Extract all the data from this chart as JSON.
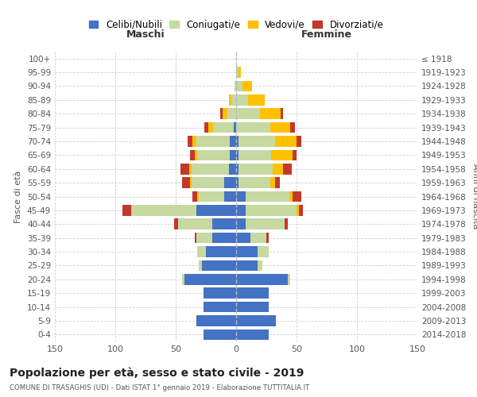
{
  "age_groups": [
    "0-4",
    "5-9",
    "10-14",
    "15-19",
    "20-24",
    "25-29",
    "30-34",
    "35-39",
    "40-44",
    "45-49",
    "50-54",
    "55-59",
    "60-64",
    "65-69",
    "70-74",
    "75-79",
    "80-84",
    "85-89",
    "90-94",
    "95-99",
    "100+"
  ],
  "birth_years": [
    "2014-2018",
    "2009-2013",
    "2004-2008",
    "1999-2003",
    "1994-1998",
    "1989-1993",
    "1984-1988",
    "1979-1983",
    "1974-1978",
    "1969-1973",
    "1964-1968",
    "1959-1963",
    "1954-1958",
    "1949-1953",
    "1944-1948",
    "1939-1943",
    "1934-1938",
    "1929-1933",
    "1924-1928",
    "1919-1923",
    "≤ 1918"
  ],
  "males_celibi": [
    27,
    33,
    27,
    27,
    43,
    28,
    25,
    20,
    20,
    33,
    10,
    10,
    6,
    5,
    5,
    2,
    0,
    0,
    0,
    0,
    0
  ],
  "males_coniugati": [
    0,
    0,
    0,
    0,
    2,
    3,
    7,
    13,
    28,
    53,
    21,
    27,
    31,
    27,
    28,
    17,
    7,
    4,
    1,
    0,
    0
  ],
  "males_vedovi": [
    0,
    0,
    0,
    0,
    0,
    0,
    0,
    0,
    0,
    1,
    1,
    1,
    2,
    2,
    3,
    4,
    4,
    2,
    0,
    0,
    0
  ],
  "males_divorziati": [
    0,
    0,
    0,
    0,
    0,
    0,
    0,
    1,
    3,
    7,
    4,
    7,
    7,
    4,
    4,
    3,
    2,
    0,
    0,
    0,
    0
  ],
  "females_nubili": [
    27,
    33,
    27,
    27,
    43,
    18,
    18,
    12,
    8,
    8,
    8,
    2,
    2,
    2,
    2,
    0,
    0,
    0,
    0,
    0,
    0
  ],
  "females_coniugate": [
    0,
    0,
    0,
    0,
    2,
    4,
    9,
    13,
    32,
    42,
    36,
    26,
    28,
    27,
    30,
    28,
    20,
    10,
    5,
    2,
    0
  ],
  "females_vedove": [
    0,
    0,
    0,
    0,
    0,
    0,
    0,
    0,
    0,
    2,
    3,
    4,
    9,
    18,
    18,
    17,
    17,
    14,
    8,
    2,
    0
  ],
  "females_divorziate": [
    0,
    0,
    0,
    0,
    0,
    0,
    0,
    2,
    3,
    3,
    7,
    4,
    7,
    3,
    4,
    4,
    2,
    0,
    0,
    0,
    0
  ],
  "colors": {
    "celibi": "#4472C4",
    "coniugati": "#c5d9a0",
    "vedovi": "#ffc000",
    "divorziati": "#c0392b"
  },
  "title": "Popolazione per età, sesso e stato civile - 2019",
  "subtitle": "COMUNE DI TRASAGHIS (UD) - Dati ISTAT 1° gennaio 2019 - Elaborazione TUTTITALIA.IT",
  "xlabel_left": "Maschi",
  "xlabel_right": "Femmine",
  "ylabel_left": "Fasce di età",
  "ylabel_right": "Anni di nascita",
  "xlim": 150,
  "legend_labels": [
    "Celibi/Nubili",
    "Coniugati/e",
    "Vedovi/e",
    "Divorziati/e"
  ]
}
